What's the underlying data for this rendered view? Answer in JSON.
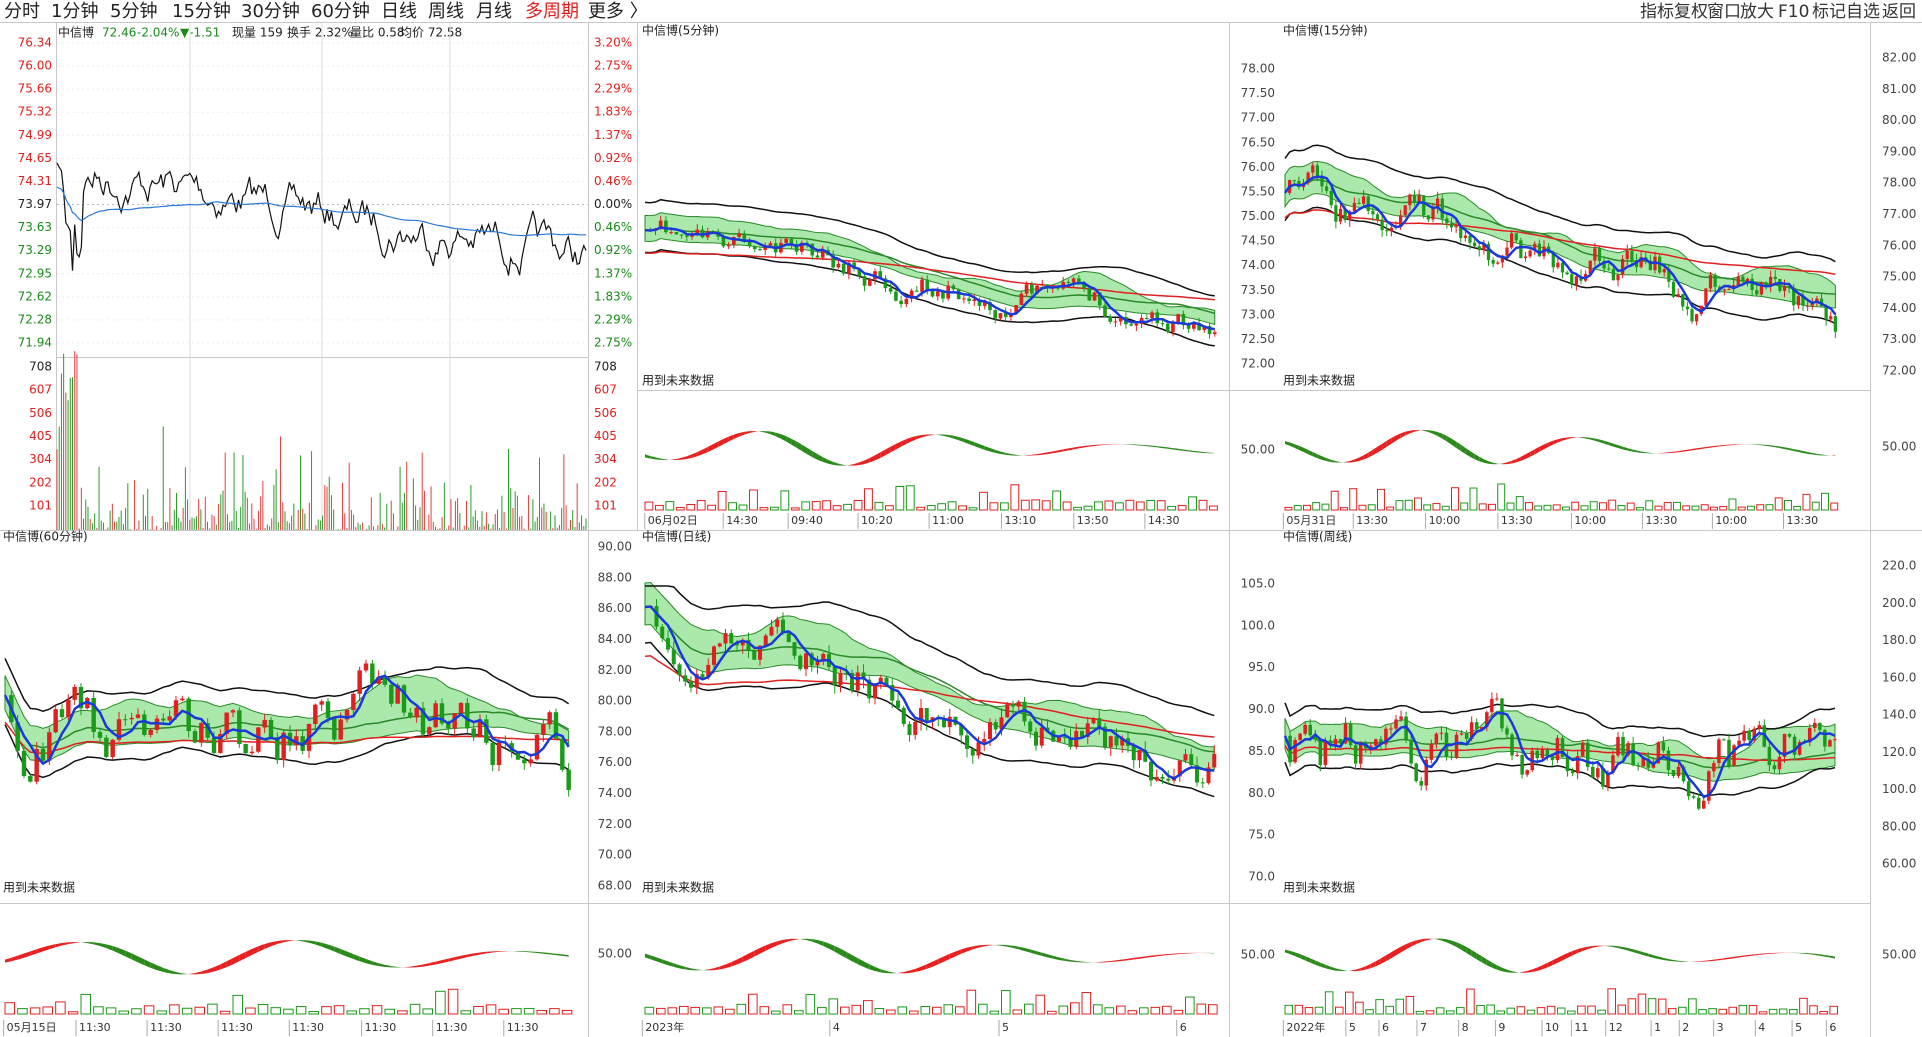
{
  "toolbar": {
    "left": [
      "分时",
      "1分钟",
      "5分钟",
      "15分钟",
      "30分钟",
      "60分钟",
      "日线",
      "周线",
      "月线",
      "多周期",
      "更多 〉"
    ],
    "right": [
      "指标",
      "复权",
      "窗口",
      "放大",
      "F10",
      "标记",
      "自选",
      "返回"
    ]
  },
  "intraday": {
    "title": "中信博",
    "info": [
      "72.46",
      "-2.04%",
      "▼-1.51",
      "现量 159",
      "换手 2.32%",
      "量比 0.58",
      "均价 72.58"
    ],
    "price_ticks": [
      "76.34",
      "76.00",
      "75.66",
      "75.32",
      "74.99",
      "74.65",
      "74.31",
      "73.97",
      "73.63",
      "73.29",
      "72.95",
      "72.62",
      "72.28",
      "71.94"
    ],
    "pct_ticks": [
      "3.20%",
      "2.75%",
      "2.29%",
      "1.83%",
      "1.37%",
      "0.92%",
      "0.46%",
      "0.00%",
      "0.46%",
      "0.92%",
      "1.37%",
      "1.83%",
      "2.29%",
      "2.75%"
    ],
    "volume_ticks": [
      "708",
      "607",
      "506",
      "405",
      "304",
      "202",
      "101"
    ]
  },
  "panels": [
    {
      "title": "中信博(5分钟)",
      "note": "用到未来数据",
      "x_labels": [
        "06月02日",
        "14:30",
        "09:40",
        "10:20",
        "11:00",
        "13:10",
        "13:50",
        "14:30"
      ]
    },
    {
      "title": "中信博(15分钟)",
      "note": "用到未来数据",
      "left_axis": [
        "78.00",
        "77.50",
        "77.00",
        "76.50",
        "76.00",
        "75.50",
        "75.00",
        "74.50",
        "74.00",
        "73.50",
        "73.00",
        "72.50",
        "72.00"
      ],
      "left_sub": "50.00",
      "right_axis": [
        "82.00",
        "81.00",
        "80.00",
        "79.00",
        "78.00",
        "77.00",
        "76.00",
        "75.00",
        "74.00",
        "73.00",
        "72.00"
      ],
      "right_sub": "50.00",
      "x_labels": [
        "05月31日",
        "13:30",
        "10:00",
        "13:30",
        "10:00",
        "13:30",
        "10:00",
        "13:30"
      ]
    },
    {
      "title": "中信博(60分钟)",
      "note": "用到未来数据",
      "x_labels": [
        "05月15日",
        "11:30",
        "11:30",
        "11:30",
        "11:30",
        "11:30",
        "11:30",
        "11:30"
      ]
    },
    {
      "title": "中信博(日线)",
      "note": "用到未来数据",
      "left_axis": [
        "90.00",
        "88.00",
        "86.00",
        "84.00",
        "82.00",
        "80.00",
        "78.00",
        "76.00",
        "74.00",
        "72.00",
        "70.00",
        "68.00"
      ],
      "left_sub": "50.00",
      "x_labels": [
        "2023年",
        "4",
        "5",
        "6"
      ]
    },
    {
      "title": "中信博(周线)",
      "note": "用到未来数据",
      "left_axis": [
        "105.0",
        "100.0",
        "95.0",
        "90.0",
        "85.0",
        "80.0",
        "75.0",
        "70.0"
      ],
      "left_sub": "50.00",
      "right_axis": [
        "220.0",
        "200.0",
        "180.0",
        "160.0",
        "140.0",
        "120.0",
        "100.0",
        "80.00",
        "60.00"
      ],
      "right_sub": "50.00",
      "x_labels": [
        "2022年",
        "5",
        "6",
        "7",
        "8",
        "9",
        "10",
        "11",
        "12",
        "1",
        "2",
        "3",
        "4",
        "5",
        "6"
      ]
    }
  ]
}
